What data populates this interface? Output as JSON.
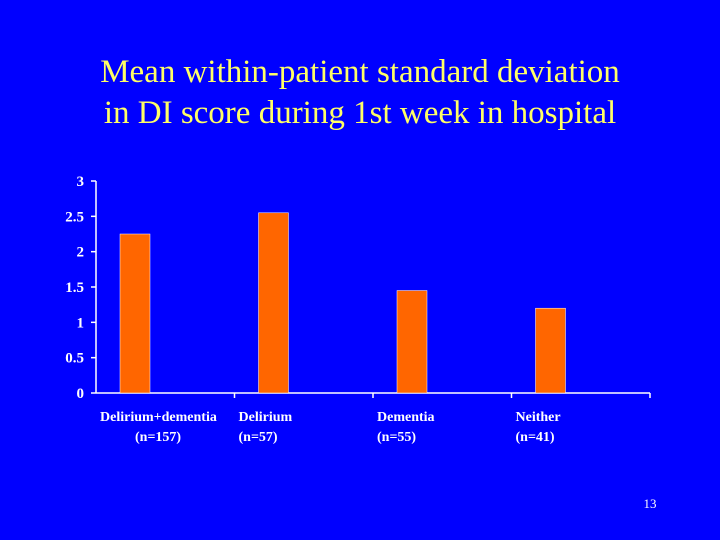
{
  "slide": {
    "title_line1": "Mean within-patient standard deviation",
    "title_line2": "in DI score during 1st week in hospital",
    "page_number": "13"
  },
  "colors": {
    "background": "#0000ff",
    "title": "#ffff66",
    "bar": "#ff6600",
    "axis": "#ffffff"
  },
  "chart_data": {
    "type": "bar",
    "title": "Mean within-patient standard deviation in DI score during 1st week in hospital",
    "xlabel": "",
    "ylabel": "",
    "categories": [
      "Delirium+dementia",
      "Delirium",
      "Dementia",
      "Neither"
    ],
    "category_counts": [
      "(n=157)",
      "(n=57)",
      "(n=55)",
      "(n=41)"
    ],
    "values": [
      2.25,
      2.55,
      1.45,
      1.2
    ],
    "ylim": [
      0,
      3
    ],
    "yticks": [
      0,
      0.5,
      1,
      1.5,
      2,
      2.5,
      3
    ],
    "ytick_labels": [
      "0",
      "0.5",
      "1",
      "1.5",
      "2",
      "2.5",
      "3"
    ],
    "grid": false,
    "legend": "none"
  }
}
